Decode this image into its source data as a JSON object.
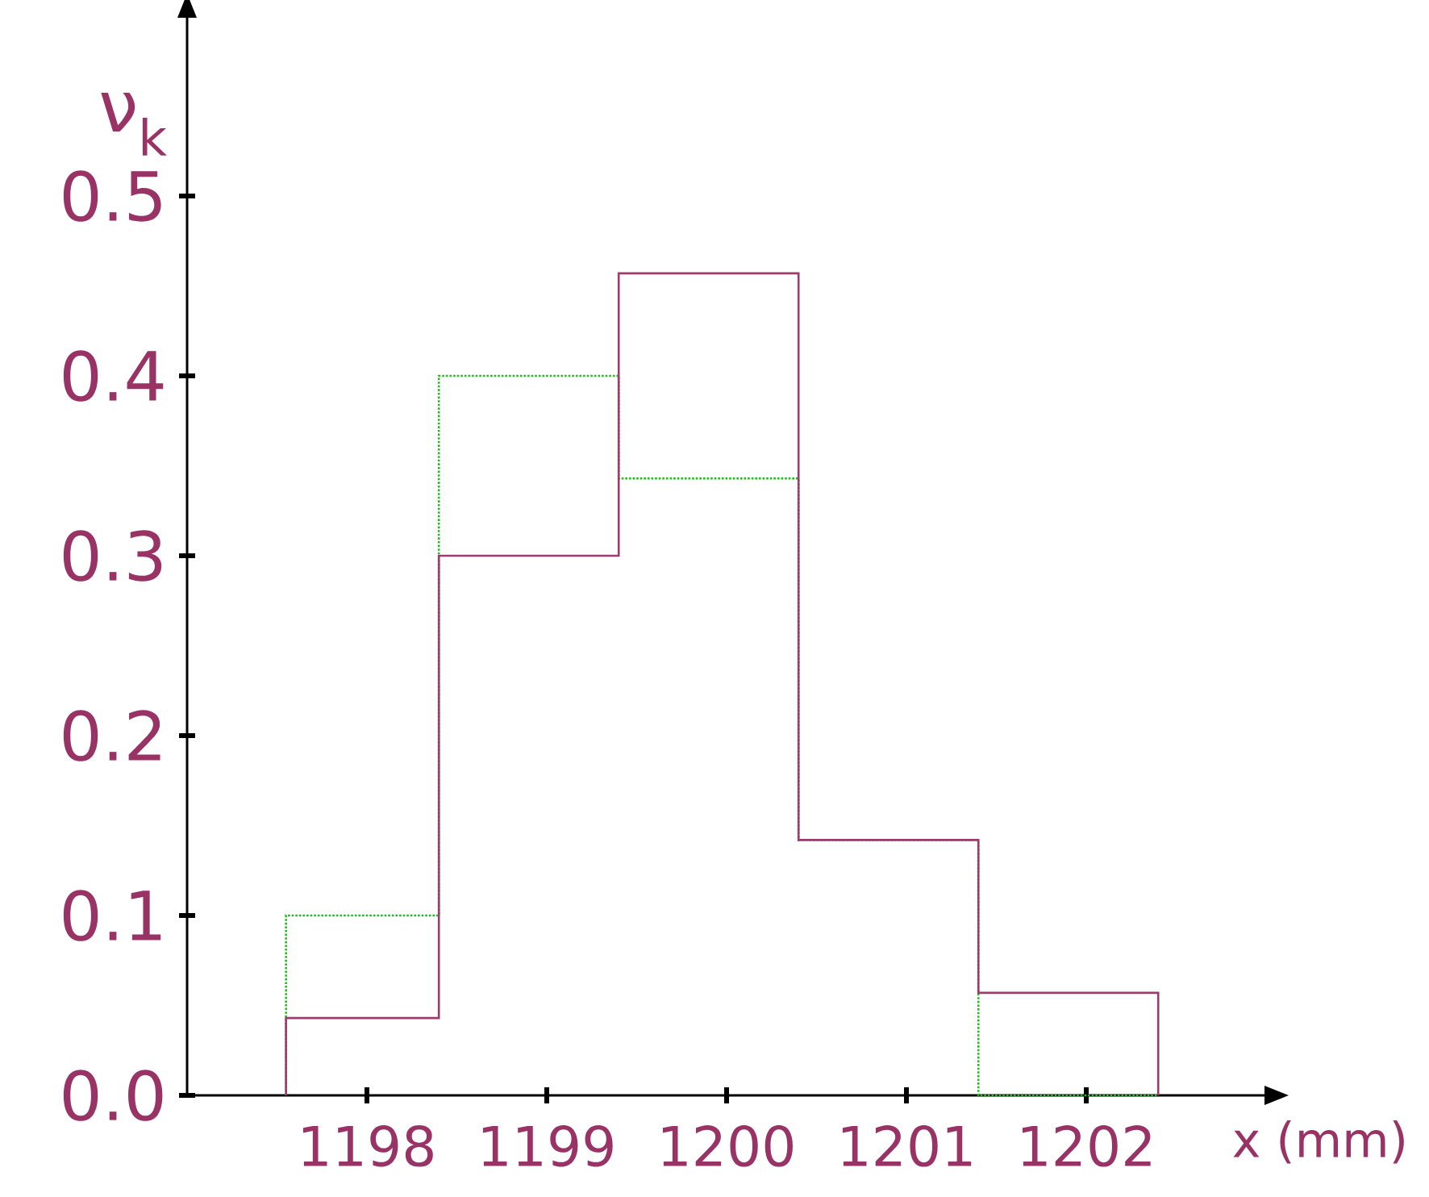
{
  "chart_data": {
    "type": "histogram",
    "xlabel": "x (mm)",
    "ylabel": "ν$_{k}$",
    "bins": [
      1197.55,
      1198.4,
      1199.4,
      1200.4,
      1201.4,
      1202.4
    ],
    "series": [
      {
        "color": "#22bb22",
        "line_style": "dotted",
        "values": [
          0.1,
          0.4,
          0.343,
          0.142,
          0
        ]
      },
      {
        "color": "#a03a6e",
        "line_style": "solid",
        "values": [
          0.043,
          0.3,
          0.457,
          0.142,
          0.057
        ]
      }
    ],
    "xlim": [
      1197,
      1203
    ],
    "ylim": [
      0,
      0.6
    ],
    "xticks": [
      1198,
      1199,
      1200,
      1201,
      1202
    ],
    "yticks": [
      {
        "value": 0,
        "label": "0.0"
      },
      {
        "value": 0.1,
        "label": "0.1"
      },
      {
        "value": 0.2,
        "label": "0.2"
      },
      {
        "value": 0.3,
        "label": "0.3"
      },
      {
        "value": 0.4,
        "label": "0.4"
      },
      {
        "value": 0.5,
        "label": "0.5"
      }
    ]
  }
}
